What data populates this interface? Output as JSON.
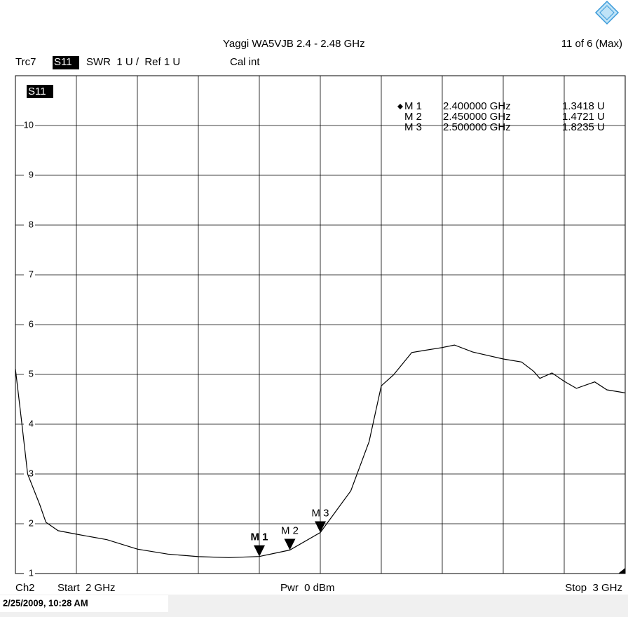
{
  "chart_data": {
    "type": "line",
    "title": "Yaggi WA5VJB 2.4 - 2.48 GHz",
    "page_info": "11 of 6 (Max)",
    "trace": "Trc7",
    "parameter": "S11",
    "format": "SWR  1 U /  Ref 1 U",
    "cal": "Cal int",
    "channel": "Ch2",
    "start": "Start  2 GHz",
    "power": "Pwr  0 dBm",
    "stop": "Stop  3 GHz",
    "timestamp": "2/25/2009, 10:28 AM",
    "xlim": [
      2,
      3
    ],
    "xticks": [
      2,
      2.1,
      2.2,
      2.3,
      2.4,
      2.5,
      2.6,
      2.7,
      2.8,
      2.9,
      3
    ],
    "ylim": [
      1,
      11
    ],
    "yticks": [
      1,
      2,
      3,
      4,
      5,
      6,
      7,
      8,
      9,
      10
    ],
    "grid": true,
    "series": [
      {
        "name": "S11",
        "color": "#000000",
        "x": [
          2.0,
          2.01,
          2.02,
          2.04,
          2.05,
          2.07,
          2.1,
          2.15,
          2.2,
          2.25,
          2.3,
          2.35,
          2.4,
          2.45,
          2.5,
          2.55,
          2.58,
          2.6,
          2.62,
          2.65,
          2.67,
          2.7,
          2.72,
          2.75,
          2.8,
          2.83,
          2.85,
          2.86,
          2.88,
          2.9,
          2.92,
          2.95,
          2.97,
          3.0
        ],
        "values": [
          5.11,
          4.07,
          3.0,
          2.38,
          2.03,
          1.86,
          1.79,
          1.68,
          1.49,
          1.39,
          1.34,
          1.32,
          1.3418,
          1.4721,
          1.8235,
          2.66,
          3.65,
          4.77,
          4.99,
          5.44,
          5.48,
          5.54,
          5.59,
          5.45,
          5.31,
          5.25,
          5.06,
          4.92,
          5.03,
          4.86,
          4.72,
          4.85,
          4.69,
          4.63
        ]
      }
    ],
    "markers": [
      {
        "name": "M 1",
        "x": 2.4,
        "x_label": "2.400000 GHz",
        "value": 1.3418,
        "value_label": "1.3418 U"
      },
      {
        "name": "M 2",
        "x": 2.45,
        "x_label": "2.450000 GHz",
        "value": 1.4721,
        "value_label": "1.4721 U"
      },
      {
        "name": "M 3",
        "x": 2.5,
        "x_label": "2.500000 GHz",
        "value": 1.8235,
        "value_label": "1.8235 U"
      }
    ]
  }
}
